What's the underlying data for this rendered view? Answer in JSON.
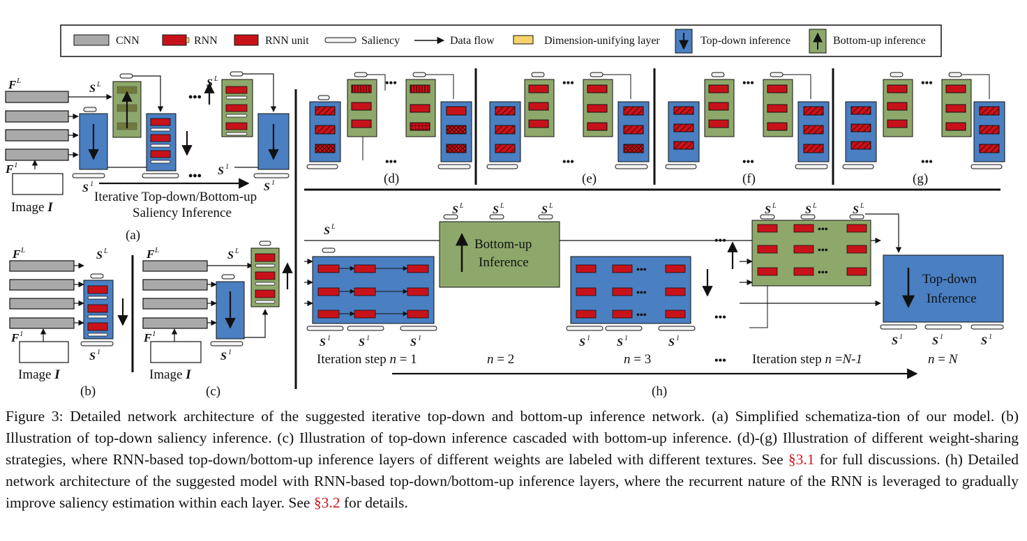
{
  "legend": {
    "items": [
      {
        "key": "cnn",
        "label": "CNN"
      },
      {
        "key": "rnn",
        "label": "RNN"
      },
      {
        "key": "rnn_unit",
        "label": "RNN unit"
      },
      {
        "key": "saliency",
        "label": "Saliency"
      },
      {
        "key": "dataflow",
        "label": "Data flow"
      },
      {
        "key": "dimlayer",
        "label": "Dimension-unifying layer"
      },
      {
        "key": "topdown",
        "label": "Top-down inference"
      },
      {
        "key": "bottomup",
        "label": "Bottom-up inference"
      }
    ]
  },
  "symbols": {
    "FL": "F",
    "FL_sup": "L",
    "F1": "F",
    "F1_sup": "1",
    "S": "S",
    "SL_sup": "L",
    "S1_sup": "1",
    "dots": "•••"
  },
  "panel_a": {
    "image": "Image ",
    "image_var": "I",
    "flow_line1": "Iterative Top-down/Bottom-up",
    "flow_line2": "Saliency Inference",
    "label": "(a)"
  },
  "panel_b": {
    "image": "Image ",
    "image_var": "I",
    "label": "(b)"
  },
  "panel_c": {
    "image": "Image ",
    "image_var": "I",
    "label": "(c)"
  },
  "panel_labels": {
    "d": "(d)",
    "e": "(e)",
    "f": "(f)",
    "g": "(g)",
    "h": "(h)"
  },
  "panel_h": {
    "bottomup_l1": "Bottom-up",
    "bottomup_l2": "Inference",
    "topdown_l1": "Top-down",
    "topdown_l2": "Inference",
    "step1_prefix": "Iteration step ",
    "step1_var": "n",
    "step1_suffix": " = 1",
    "step2_var": "n",
    "step2_suffix": " = 2",
    "step3_var": "n",
    "step3_suffix": " = 3",
    "step4_prefix": "Iteration step ",
    "step4_var": "n",
    "step4_suffix": " =",
    "step4_var2": "N-1",
    "step5_var": "n",
    "step5_suffix": " = ",
    "step5_var2": "N"
  },
  "caption": {
    "p1": "Figure 3: Detailed network architecture of the suggested iterative top-down and bottom-up inference network. (a) Simplified schematiza-tion of our model. (b) Illustration of top-down saliency inference. (c) Illustration of top-down inference cascaded with bottom-up inference. (d)-(g) Illustration of different weight-sharing strategies, where RNN-based top-down/bottom-up inference layers of different weights are labeled with different textures. See ",
    "ref1": "§3.1",
    "p2": " for full discussions. (h) Detailed network architecture of the suggested model with RNN-based top-down/bottom-up inference layers, where the recurrent nature of the RNN is leveraged to gradually improve saliency estimation within each layer. See ",
    "ref2": "§3.2",
    "p3": " for details."
  },
  "colors": {
    "cnn": "#a9a9a9",
    "rnn": "#c8121a",
    "topdown": "#4a7fc1",
    "bottomup": "#8ea86b",
    "dimlayer": "#f6d36b",
    "saliency": "#f4f4f4"
  }
}
